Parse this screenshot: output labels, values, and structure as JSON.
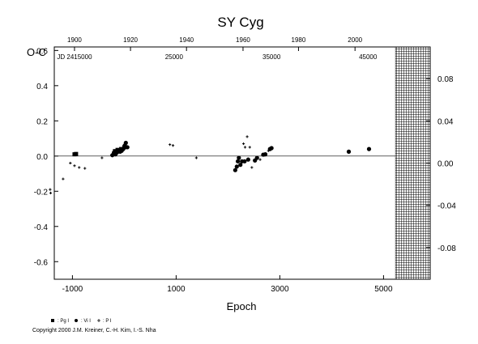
{
  "chart_data": {
    "type": "scatter",
    "title": "SY Cyg",
    "xlabel": "Epoch",
    "ylabel_left": "O-C",
    "xlim": [
      -1350,
      5900
    ],
    "ylim": [
      -0.7,
      0.62
    ],
    "ylim_right": [
      -0.11,
      0.11
    ],
    "x_ticks": [
      -1000,
      1000,
      3000,
      5000
    ],
    "x_tick_labels": [
      "-1000",
      "1000",
      "3000",
      "5000"
    ],
    "y_ticks": [
      -0.6,
      -0.4,
      -0.2,
      0.0,
      0.2,
      0.4,
      0.6
    ],
    "y_tick_labels": [
      "-0.6",
      "-0.4",
      "-0.2",
      "0.0",
      "0.2",
      "0.4",
      "0.6"
    ],
    "y_ticks_right": [
      -0.08,
      -0.04,
      0.0,
      0.04,
      0.08
    ],
    "y_tick_labels_right": [
      "-0.08",
      "-0.04",
      "0.00",
      "0.04",
      "0.08"
    ],
    "top_year_ticks": [
      {
        "epoch": -960,
        "label": "1900"
      },
      {
        "epoch": 120,
        "label": "1920"
      },
      {
        "epoch": 1200,
        "label": "1940"
      },
      {
        "epoch": 2290,
        "label": "1960"
      },
      {
        "epoch": 3360,
        "label": "1980"
      },
      {
        "epoch": 4450,
        "label": "2000"
      }
    ],
    "top_jd_labels": [
      {
        "epoch": -960,
        "label": "JD 2415000"
      },
      {
        "epoch": 960,
        "label": "25000"
      },
      {
        "epoch": 2840,
        "label": "35000"
      },
      {
        "epoch": 4700,
        "label": "45000"
      }
    ],
    "zero_line": 0.0,
    "hatched_region_x": [
      5230,
      5900
    ],
    "legend": [
      {
        "symbol": "square",
        "label": ": Pg I"
      },
      {
        "symbol": "circle",
        "label": ": Vi I"
      },
      {
        "symbol": "cross",
        "label": ": P I"
      }
    ],
    "series": [
      {
        "symbol": "square",
        "points": [
          [
            -960,
            0.01
          ],
          [
            -930,
            0.012
          ],
          [
            -180,
            0.028
          ],
          [
            -130,
            0.035
          ],
          [
            -60,
            0.04
          ],
          [
            0,
            0.05
          ]
        ]
      },
      {
        "symbol": "circle",
        "points": [
          [
            -230,
            0.005
          ],
          [
            -200,
            0.02
          ],
          [
            -170,
            0.01
          ],
          [
            -140,
            0.02
          ],
          [
            -110,
            0.03
          ],
          [
            -80,
            0.025
          ],
          [
            -50,
            0.03
          ],
          [
            -20,
            0.04
          ],
          [
            10,
            0.06
          ],
          [
            30,
            0.075
          ],
          [
            60,
            0.05
          ],
          [
            2140,
            -0.08
          ],
          [
            2170,
            -0.06
          ],
          [
            2190,
            -0.03
          ],
          [
            2210,
            -0.01
          ],
          [
            2240,
            -0.05
          ],
          [
            2270,
            -0.03
          ],
          [
            2320,
            -0.03
          ],
          [
            2390,
            -0.02
          ],
          [
            2520,
            -0.025
          ],
          [
            2560,
            -0.01
          ],
          [
            2680,
            0.008
          ],
          [
            2720,
            0.01
          ],
          [
            2810,
            0.04
          ],
          [
            2840,
            0.045
          ],
          [
            4330,
            0.025
          ],
          [
            4720,
            0.04
          ]
        ]
      },
      {
        "symbol": "cross",
        "points": [
          [
            -1430,
            -0.19
          ],
          [
            -1420,
            -0.21
          ],
          [
            -1180,
            -0.13
          ],
          [
            -1040,
            -0.04
          ],
          [
            -960,
            -0.055
          ],
          [
            -870,
            -0.065
          ],
          [
            -760,
            -0.07
          ],
          [
            -430,
            -0.01
          ],
          [
            880,
            0.065
          ],
          [
            940,
            0.06
          ],
          [
            1390,
            -0.01
          ],
          [
            2300,
            0.07
          ],
          [
            2330,
            0.05
          ],
          [
            2370,
            0.11
          ],
          [
            2420,
            0.05
          ],
          [
            2460,
            -0.065
          ],
          [
            2620,
            -0.02
          ],
          [
            2700,
            0.005
          ],
          [
            2780,
            0.03
          ]
        ]
      }
    ]
  },
  "copyright": "Copyright 2000 J.M. Kreiner, C.-H. Kim, I.-S. Nha"
}
